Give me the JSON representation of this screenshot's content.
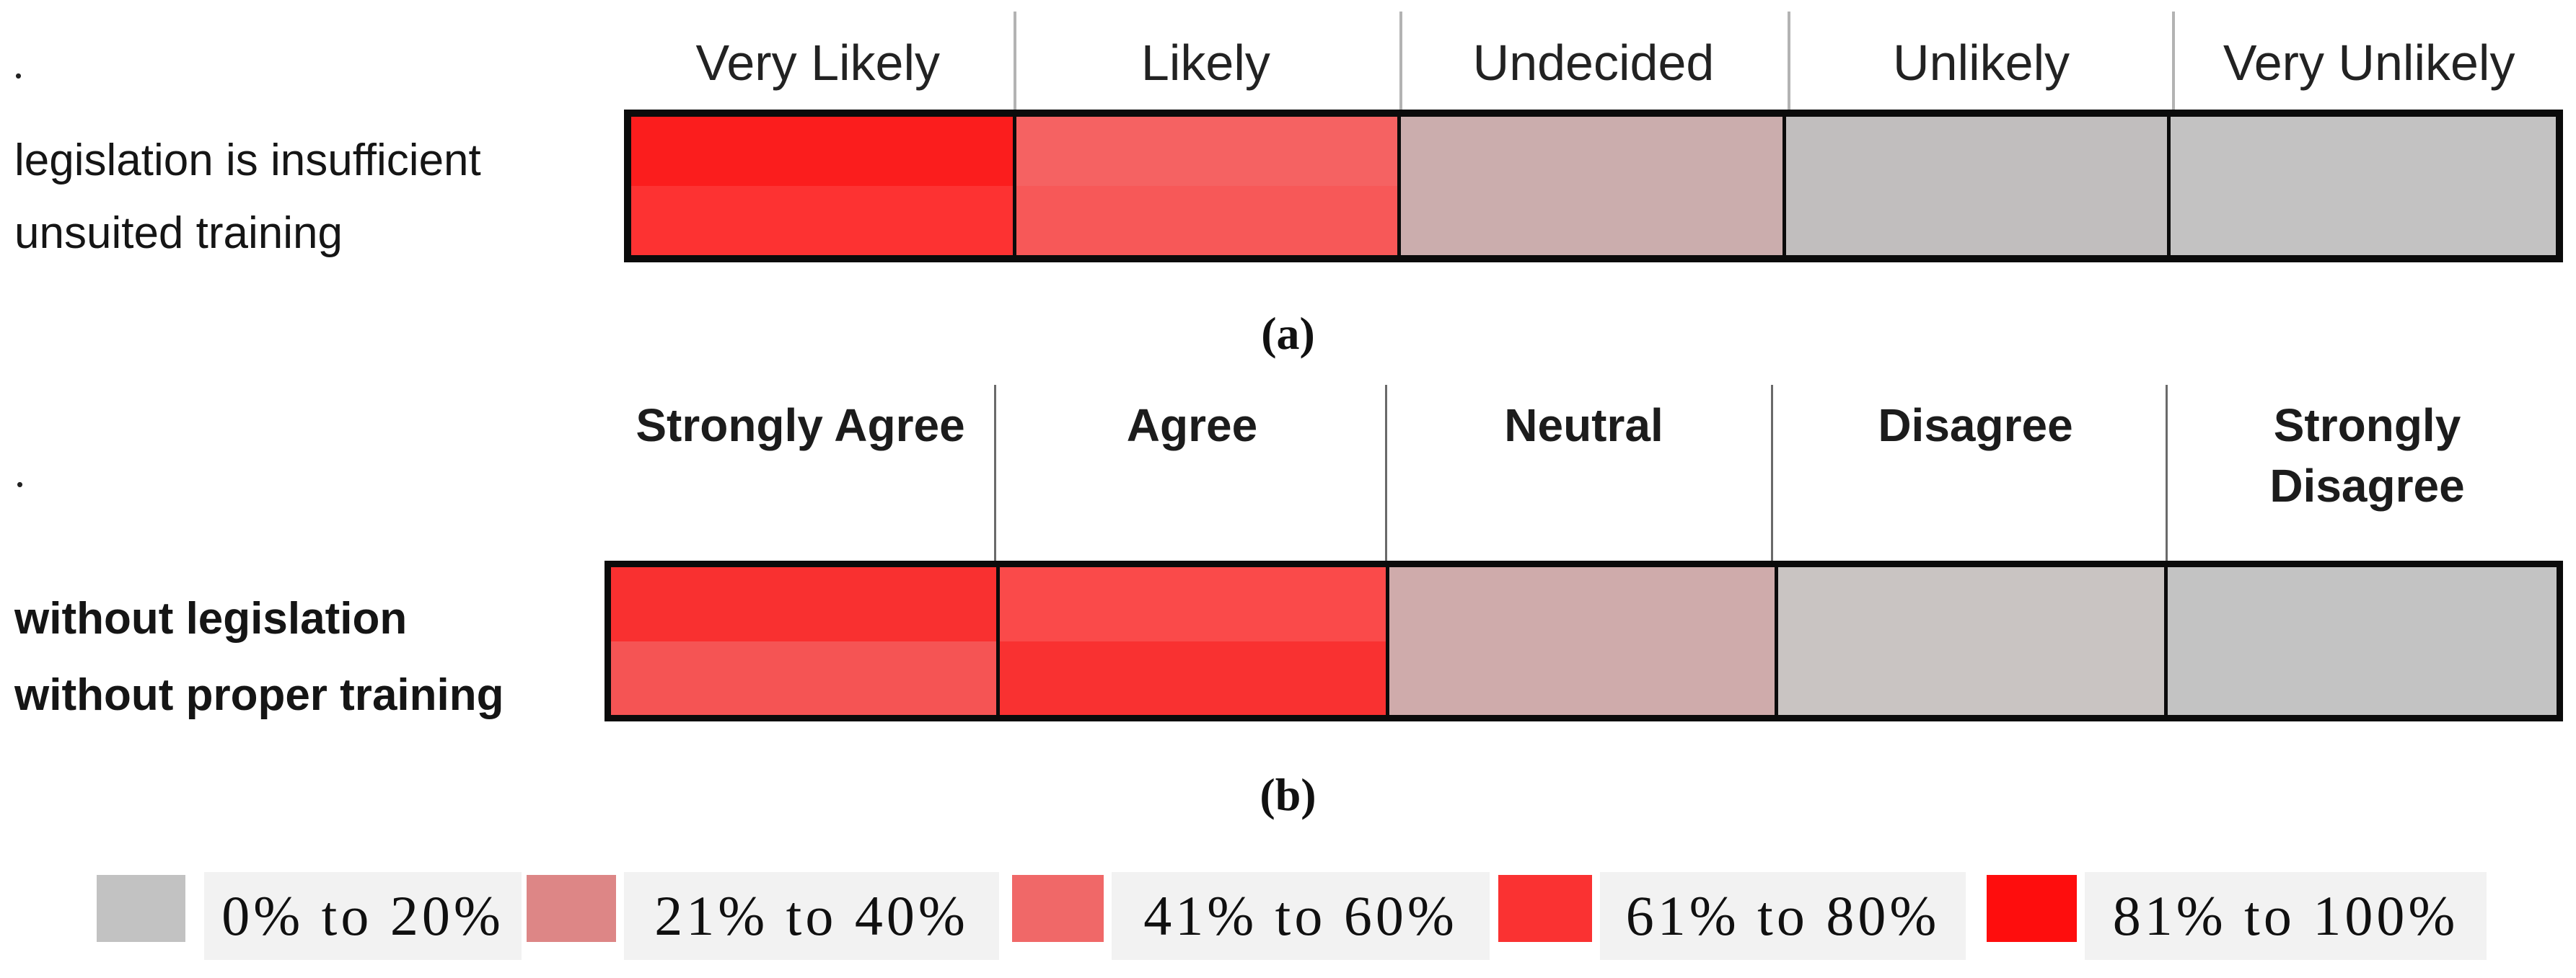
{
  "figure": {
    "stray_dot_a": ".",
    "stray_dot_b": ".",
    "caption_a": "(a)",
    "caption_b": "(b)"
  },
  "chart_data": [
    {
      "type": "heatmap",
      "panel": "a",
      "caption": "(a)",
      "scale": "likelihood",
      "columns": [
        "Very Likely",
        "Likely",
        "Undecided",
        "Unlikely",
        "Very Unlikely"
      ],
      "rows": [
        "legislation is insufficient",
        "unsuited training"
      ],
      "cell_ranges": [
        [
          "81% to 100%",
          "41% to 60%",
          "21% to 40%",
          "0% to 20%",
          "0% to 20%"
        ],
        [
          "61% to 80%",
          "41% to 60%",
          "21% to 40%",
          "0% to 20%",
          "0% to 20%"
        ]
      ],
      "cell_colors": [
        [
          "#fb1d1d",
          "#f56262",
          "#cbadad",
          "#c1bebe",
          "#c3c2c2"
        ],
        [
          "#fd3232",
          "#f75858",
          "#cbadad",
          "#c1bebe",
          "#c3c2c2"
        ]
      ]
    },
    {
      "type": "heatmap",
      "panel": "b",
      "caption": "(b)",
      "scale": "agreement",
      "columns": [
        "Strongly Agree",
        "Agree",
        "Neutral",
        "Disagree",
        "Strongly\nDisagree"
      ],
      "rows": [
        "without legislation",
        "without proper training"
      ],
      "cell_ranges": [
        [
          "61% to 80%",
          "61% to 80%",
          "21% to 40%",
          "0% to 20%",
          "0% to 20%"
        ],
        [
          "41% to 60%",
          "61% to 80%",
          "21% to 40%",
          "0% to 20%",
          "0% to 20%"
        ]
      ],
      "cell_colors": [
        [
          "#f93030",
          "#fa4a4a",
          "#cfabab",
          "#c9c4c2",
          "#c3c3c3"
        ],
        [
          "#f55454",
          "#f93131",
          "#cfabab",
          "#c9c4c2",
          "#c3c3c3"
        ]
      ]
    }
  ],
  "legend": {
    "strip_bg": "#f2f2f2",
    "items": [
      {
        "label": "0% to 20%",
        "color": "#c2c2c2"
      },
      {
        "label": "21% to 40%",
        "color": "#dd8686"
      },
      {
        "label": "41% to 60%",
        "color": "#f06868"
      },
      {
        "label": "61% to 80%",
        "color": "#fa3232"
      },
      {
        "label": "81% to 100%",
        "color": "#fe0d0d"
      }
    ]
  }
}
